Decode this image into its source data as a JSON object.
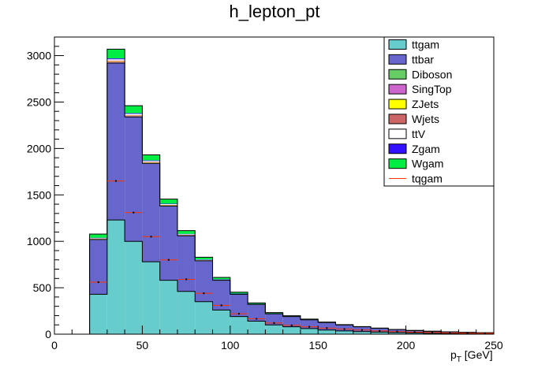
{
  "chart_data": {
    "type": "bar",
    "stacked": true,
    "title": "h_lepton_pt",
    "xlabel_main": "p",
    "xlabel_sub": "T",
    "xlabel_unit": " [GeV]",
    "ylabel": "",
    "xlim": [
      0,
      250
    ],
    "ylim": [
      0,
      3200
    ],
    "x_ticks": [
      "0",
      "50",
      "100",
      "150",
      "200",
      "250"
    ],
    "y_ticks": [
      "0",
      "500",
      "1000",
      "1500",
      "2000",
      "2500",
      "3000"
    ],
    "bin_edges": [
      20,
      30,
      40,
      50,
      60,
      70,
      80,
      90,
      100,
      110,
      120,
      130,
      140,
      150,
      160,
      170,
      180,
      190,
      200,
      210,
      220,
      230,
      240,
      250
    ],
    "series": [
      {
        "name": "ttgam",
        "color": "#66cccc",
        "values": [
          430,
          1230,
          1000,
          780,
          580,
          460,
          350,
          260,
          190,
          140,
          100,
          80,
          60,
          45,
          35,
          28,
          22,
          17,
          13,
          10,
          8,
          6,
          5
        ]
      },
      {
        "name": "ttbar",
        "color": "#6666cc",
        "values": [
          590,
          1690,
          1340,
          1060,
          800,
          600,
          440,
          320,
          240,
          180,
          120,
          110,
          95,
          80,
          65,
          52,
          42,
          33,
          26,
          21,
          17,
          13,
          10
        ]
      },
      {
        "name": "Diboson",
        "color": "#66cc66",
        "values": [
          1,
          2,
          2,
          1,
          1,
          1,
          1,
          1,
          0,
          0,
          0,
          0,
          0,
          0,
          0,
          0,
          0,
          0,
          0,
          0,
          0,
          0,
          0
        ]
      },
      {
        "name": "SingTop",
        "color": "#cc66cc",
        "values": [
          4,
          10,
          8,
          6,
          5,
          4,
          3,
          2,
          2,
          1,
          1,
          1,
          1,
          0,
          0,
          0,
          0,
          0,
          0,
          0,
          0,
          0,
          0
        ]
      },
      {
        "name": "ZJets",
        "color": "#ffff00",
        "values": [
          2,
          5,
          4,
          3,
          2,
          2,
          1,
          1,
          1,
          1,
          0,
          0,
          0,
          0,
          0,
          0,
          0,
          0,
          0,
          0,
          0,
          0,
          0
        ]
      },
      {
        "name": "Wjets",
        "color": "#cc6666",
        "values": [
          3,
          8,
          6,
          5,
          4,
          3,
          2,
          2,
          1,
          1,
          1,
          0,
          0,
          0,
          0,
          0,
          0,
          0,
          0,
          0,
          0,
          0,
          0
        ]
      },
      {
        "name": "ttV",
        "color": "#ffffff",
        "values": [
          5,
          15,
          12,
          10,
          8,
          6,
          4,
          3,
          2,
          2,
          1,
          1,
          1,
          1,
          0,
          0,
          0,
          0,
          0,
          0,
          0,
          0,
          0
        ]
      },
      {
        "name": "Zgam",
        "color": "#3311ff",
        "values": [
          3,
          10,
          8,
          6,
          5,
          4,
          3,
          2,
          1,
          1,
          1,
          0,
          0,
          0,
          0,
          0,
          0,
          0,
          0,
          0,
          0,
          0,
          0
        ]
      },
      {
        "name": "Wgam",
        "color": "#00ee44",
        "values": [
          40,
          100,
          80,
          60,
          50,
          35,
          25,
          20,
          15,
          10,
          8,
          6,
          5,
          4,
          3,
          2,
          2,
          1,
          1,
          1,
          0,
          0,
          0
        ]
      }
    ],
    "overlay": {
      "name": "tqgam",
      "color": "#ff3300",
      "values": [
        560,
        1650,
        1310,
        1050,
        800,
        590,
        440,
        310,
        220,
        165,
        120,
        95,
        80,
        65,
        55,
        45,
        35,
        28,
        22,
        18,
        14,
        11,
        8
      ]
    },
    "legend_position": "top-right",
    "grid": false
  }
}
